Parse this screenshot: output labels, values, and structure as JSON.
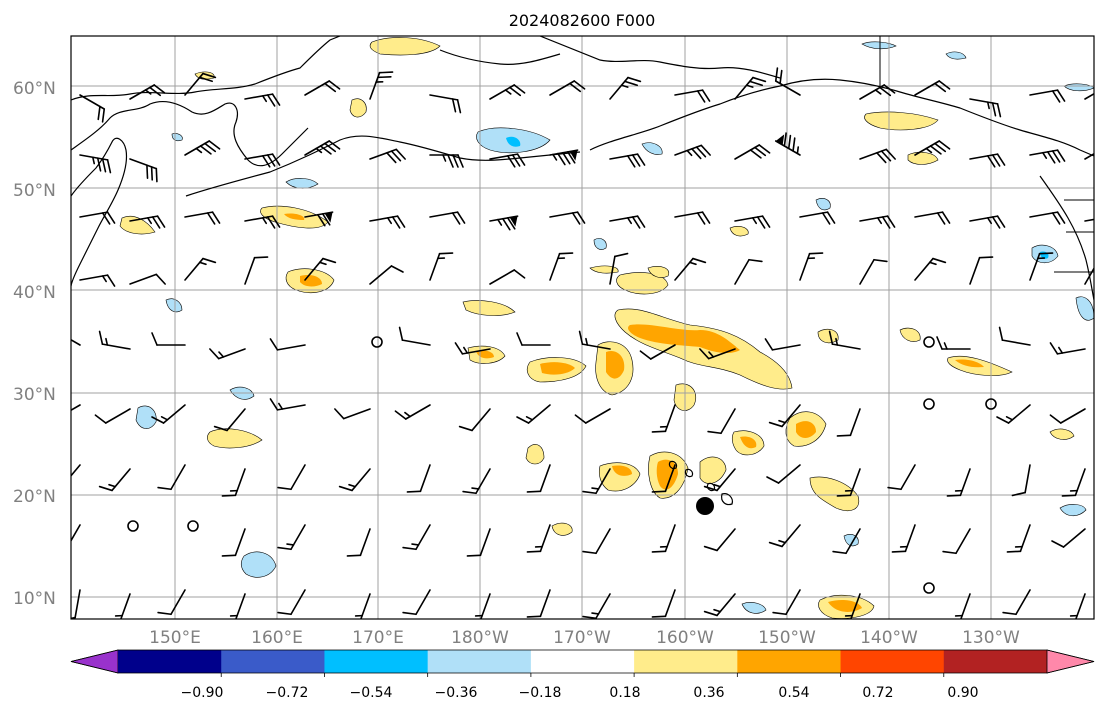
{
  "title": "2024082600 F000",
  "lat_labels": [
    "60°N",
    "50°N",
    "40°N",
    "30°N",
    "20°N",
    "10°N"
  ],
  "lon_labels": [
    "150°E",
    "160°E",
    "170°E",
    "180°W",
    "170°W",
    "160°W",
    "150°W",
    "140°W",
    "130°W"
  ],
  "colorbar": {
    "colors": [
      "#9932cc",
      "#00008b",
      "#3a5bc9",
      "#00bfff",
      "#b0e0f8",
      "#ffffff",
      "#ffec8b",
      "#ffa500",
      "#ff4500",
      "#b22222",
      "#ff88aa"
    ],
    "tick_labels": [
      "−0.90",
      "−0.72",
      "−0.54",
      "−0.36",
      "−0.18",
      "0.18",
      "0.36",
      "0.54",
      "0.72",
      "0.90"
    ]
  },
  "map": {
    "colors": {
      "light_yellow": "#ffec8b",
      "orange": "#ffa500",
      "light_blue": "#b0e0f8",
      "blue": "#00bfff",
      "coast": "#000000",
      "grid": "#a0a0a0"
    },
    "storm_marker": "filled-circle"
  }
}
